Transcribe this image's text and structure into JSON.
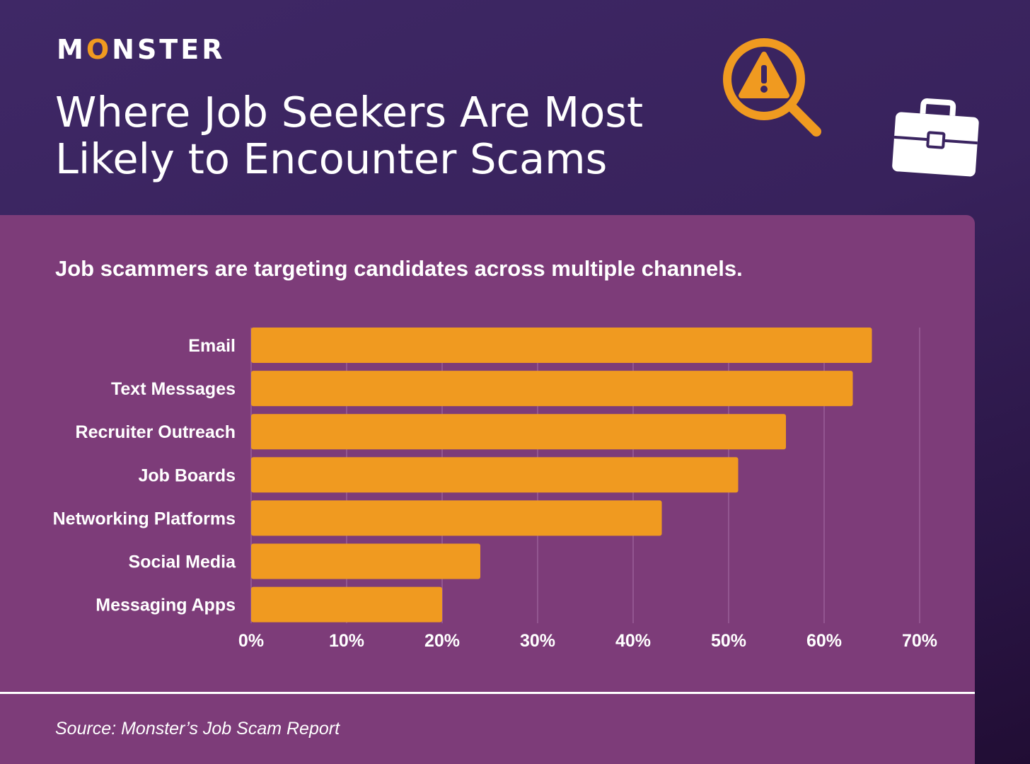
{
  "brand": {
    "name_before": "M",
    "name_accent": "O",
    "name_after": "NSTER"
  },
  "header": {
    "title_line1": "Where Job Seekers Are Most",
    "title_line2": "Likely to Encounter Scams"
  },
  "icons": {
    "search": "magnifier-warning-icon",
    "briefcase": "briefcase-icon"
  },
  "colors": {
    "bar": "#f09a20",
    "card": "#7d3c79",
    "accent": "#f09a20",
    "text": "#ffffff"
  },
  "chart_data": {
    "type": "bar",
    "orientation": "horizontal",
    "title": "Job scammers are targeting candidates across multiple channels.",
    "categories": [
      "Email",
      "Text Messages",
      "Recruiter Outreach",
      "Job Boards",
      "Networking Platforms",
      "Social Media",
      "Messaging Apps"
    ],
    "values": [
      65,
      63,
      56,
      51,
      43,
      24,
      20
    ],
    "xlim": [
      0,
      70
    ],
    "xticks": [
      "0%",
      "10%",
      "20%",
      "30%",
      "40%",
      "50%",
      "60%",
      "70%"
    ],
    "grid": true,
    "unit": "%"
  },
  "footer": {
    "source": "Source: Monster’s Job Scam Report"
  }
}
